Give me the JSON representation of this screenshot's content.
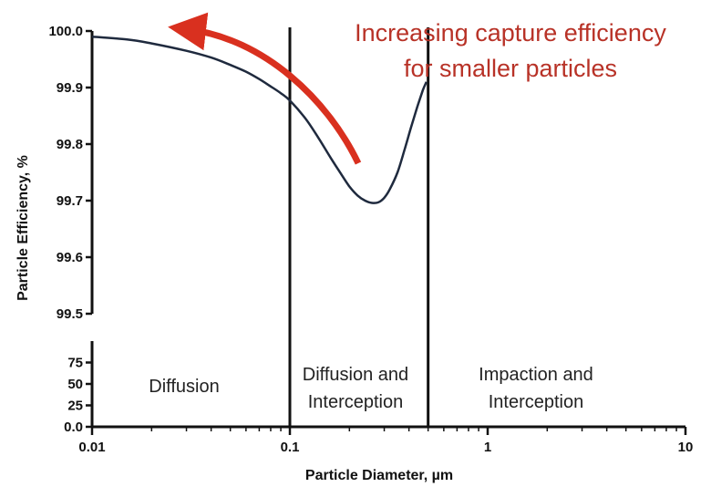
{
  "chart_data": {
    "type": "line",
    "xlabel": "Particle Diameter, µm",
    "ylabel": "Particle Efficiency, %",
    "xscale": "log",
    "xlim": [
      0.01,
      10
    ],
    "x_ticks": [
      "0.01",
      "0.1",
      "1",
      "10"
    ],
    "ylim_upper": [
      99.5,
      100.0
    ],
    "y_ticks_upper": [
      "100.0",
      "99.9",
      "99.8",
      "99.7",
      "99.6",
      "99.5"
    ],
    "ylim_lower": [
      0,
      100
    ],
    "y_ticks_lower": [
      "75",
      "50",
      "25",
      "0.0"
    ],
    "grid": false,
    "series": [
      {
        "x": [
          0.01,
          0.015,
          0.02,
          0.03,
          0.04,
          0.05,
          0.06,
          0.07,
          0.08,
          0.09,
          0.1,
          0.12,
          0.14,
          0.16,
          0.18,
          0.2,
          0.22,
          0.24,
          0.26,
          0.28,
          0.3,
          0.32,
          0.35,
          0.38,
          0.41,
          0.44,
          0.47,
          0.49
        ],
        "y": [
          99.99,
          99.985,
          99.978,
          99.965,
          99.953,
          99.94,
          99.928,
          99.915,
          99.902,
          99.89,
          99.877,
          99.845,
          99.81,
          99.777,
          99.749,
          99.725,
          99.709,
          99.7,
          99.696,
          99.697,
          99.705,
          99.72,
          99.75,
          99.79,
          99.83,
          99.865,
          99.895,
          99.91
        ],
        "color": "#1f2a3e"
      }
    ],
    "vlines": [
      0.1,
      0.5
    ],
    "regions": [
      {
        "lines": [
          "Diffusion"
        ],
        "x_range": [
          0.01,
          0.1
        ]
      },
      {
        "lines": [
          "Diffusion and",
          "Interception"
        ],
        "x_range": [
          0.1,
          0.5
        ]
      },
      {
        "lines": [
          "Impaction and",
          "Interception"
        ],
        "x_range": [
          0.5,
          10
        ]
      }
    ],
    "annotation": {
      "lines": [
        "Increasing capture efficiency",
        "for smaller particles"
      ],
      "color": "#b83227",
      "arrow_color": "#d9301f"
    }
  }
}
